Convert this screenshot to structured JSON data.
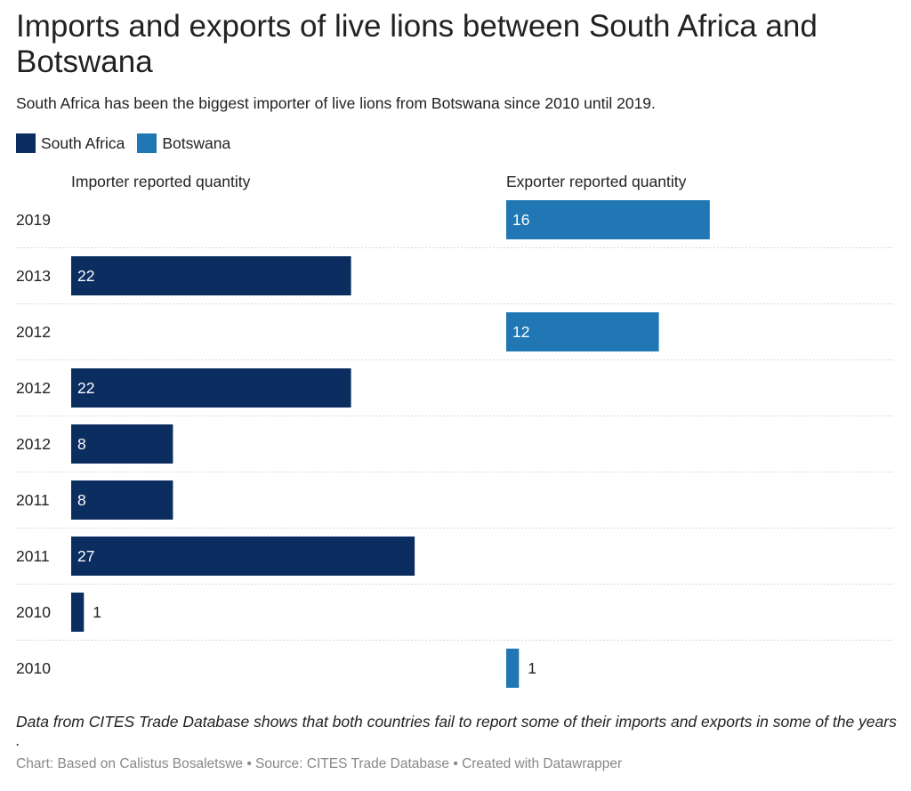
{
  "header": {
    "title": "Imports and exports of live lions between South Africa and Botswana",
    "subtitle": "South Africa has been the biggest importer of live lions from Botswana since 2010 until 2019."
  },
  "legend": [
    {
      "label": "South Africa",
      "color": "#0b2d5f"
    },
    {
      "label": "Botswana",
      "color": "#2077b4"
    }
  ],
  "columns": {
    "left_label": "Importer reported quantity",
    "right_label": "Exporter reported quantity"
  },
  "chart_data": {
    "type": "bar",
    "orientation": "horizontal",
    "categories": [
      "2019",
      "2013",
      "2012",
      "2012",
      "2012",
      "2011",
      "2011",
      "2010",
      "2010"
    ],
    "series": [
      {
        "name": "Importer reported quantity",
        "color": "#0b2d5f",
        "values": [
          null,
          22,
          null,
          22,
          8,
          8,
          27,
          1,
          null
        ]
      },
      {
        "name": "Exporter reported quantity",
        "color": "#2077b4",
        "values": [
          16,
          null,
          12,
          null,
          null,
          null,
          null,
          null,
          1
        ]
      }
    ]
  },
  "footer": {
    "notes": "Data from CITES Trade Database shows that both countries fail to report some of their imports and exports in some of the years .",
    "byline": "Chart: Based on Calistus Bosaletswe • Source: CITES Trade Database • Created with Datawrapper"
  }
}
